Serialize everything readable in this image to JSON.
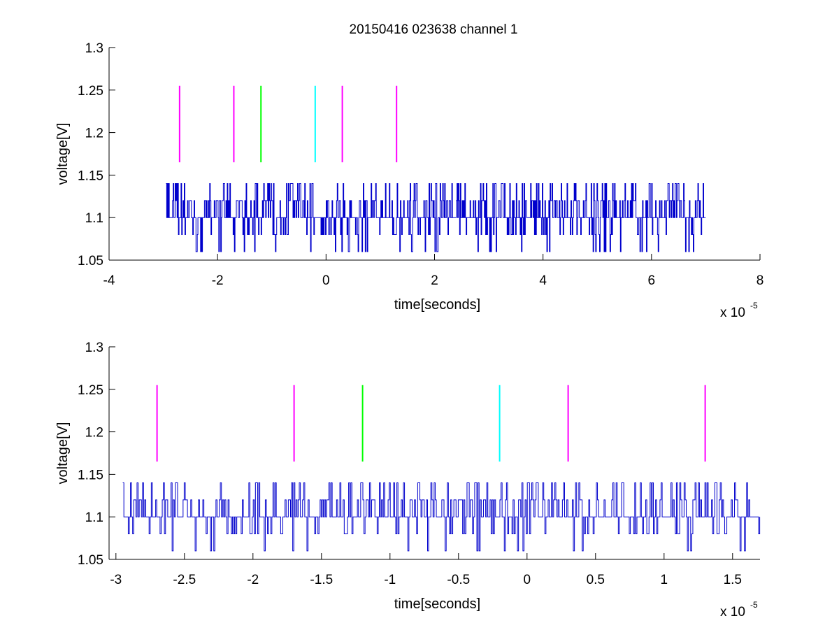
{
  "figure": {
    "title": "20150416 023638 channel 1",
    "background": "#ffffff",
    "axis_color": "#000000"
  },
  "chart_data": [
    {
      "type": "line",
      "title": "20150416 023638 channel 1",
      "xlabel": "time[seconds]",
      "ylabel": "voltage[V]",
      "x_exponent_label": "x 10",
      "x_exponent": "-5",
      "xlim": [
        -4,
        8
      ],
      "ylim": [
        1.05,
        1.3
      ],
      "x_ticks": [
        -4,
        -2,
        0,
        2,
        4,
        6,
        8
      ],
      "x_tick_labels": [
        "-4",
        "-2",
        "0",
        "2",
        "4",
        "6",
        "8"
      ],
      "y_ticks": [
        1.05,
        1.1,
        1.15,
        1.2,
        1.25,
        1.3
      ],
      "y_tick_labels": [
        "1.05",
        "1.1",
        "1.15",
        "1.2",
        "1.25",
        "1.3"
      ],
      "grid": false,
      "series": [
        {
          "color": "#0000cc",
          "x_range": [
            -2.95,
            7.0
          ],
          "levels": [
            1.06,
            1.08,
            1.1,
            1.12,
            1.14
          ],
          "baseline": 1.1,
          "description_of_trace": "noisy quantized voltage signal"
        }
      ],
      "markers": [
        {
          "x": -2.7,
          "y_range": [
            1.165,
            1.255
          ],
          "color": "#ff00ff"
        },
        {
          "x": -1.7,
          "y_range": [
            1.165,
            1.255
          ],
          "color": "#ff00ff"
        },
        {
          "x": -1.2,
          "y_range": [
            1.165,
            1.255
          ],
          "color": "#00ff00"
        },
        {
          "x": -0.2,
          "y_range": [
            1.165,
            1.255
          ],
          "color": "#00ffff"
        },
        {
          "x": 0.3,
          "y_range": [
            1.165,
            1.255
          ],
          "color": "#ff00ff"
        },
        {
          "x": 1.3,
          "y_range": [
            1.165,
            1.255
          ],
          "color": "#ff00ff"
        }
      ]
    },
    {
      "type": "line",
      "title": "",
      "xlabel": "time[seconds]",
      "ylabel": "voltage[V]",
      "x_exponent_label": "x 10",
      "x_exponent": "-5",
      "xlim": [
        -3.05,
        1.7
      ],
      "ylim": [
        1.05,
        1.3
      ],
      "x_ticks": [
        -3,
        -2.5,
        -2,
        -1.5,
        -1,
        -0.5,
        0,
        0.5,
        1,
        1.5
      ],
      "x_tick_labels": [
        "-3",
        "-2.5",
        "-2",
        "-1.5",
        "-1",
        "-0.5",
        "0",
        "0.5",
        "1",
        "1.5"
      ],
      "y_ticks": [
        1.05,
        1.1,
        1.15,
        1.2,
        1.25,
        1.3
      ],
      "y_tick_labels": [
        "1.05",
        "1.1",
        "1.15",
        "1.2",
        "1.25",
        "1.3"
      ],
      "grid": false,
      "series": [
        {
          "color": "#0000cc",
          "x_range": [
            -2.95,
            1.7
          ],
          "levels": [
            1.06,
            1.08,
            1.1,
            1.12,
            1.14
          ],
          "baseline": 1.1,
          "description_of_trace": "zoomed view of noisy quantized voltage signal"
        }
      ],
      "markers": [
        {
          "x": -2.7,
          "y_range": [
            1.165,
            1.255
          ],
          "color": "#ff00ff"
        },
        {
          "x": -1.7,
          "y_range": [
            1.165,
            1.255
          ],
          "color": "#ff00ff"
        },
        {
          "x": -1.2,
          "y_range": [
            1.165,
            1.255
          ],
          "color": "#00ff00"
        },
        {
          "x": -0.2,
          "y_range": [
            1.165,
            1.255
          ],
          "color": "#00ffff"
        },
        {
          "x": 0.3,
          "y_range": [
            1.165,
            1.255
          ],
          "color": "#ff00ff"
        },
        {
          "x": 1.3,
          "y_range": [
            1.165,
            1.255
          ],
          "color": "#ff00ff"
        }
      ]
    }
  ]
}
